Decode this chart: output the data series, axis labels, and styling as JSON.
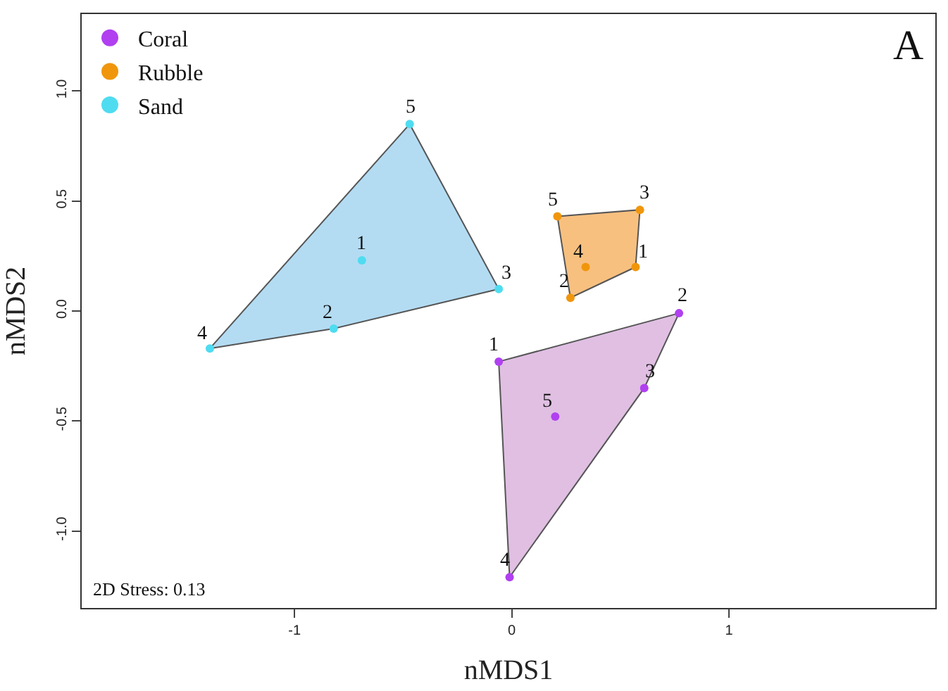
{
  "chart_data": {
    "type": "scatter",
    "xlabel": "nMDS1",
    "ylabel": "nMDS2",
    "xlim": [
      -1.98,
      1.95
    ],
    "ylim": [
      -1.35,
      1.35
    ],
    "xticks": [
      -1,
      0,
      1
    ],
    "yticks": [
      {
        "value": -1,
        "label": "-1.0"
      },
      {
        "value": -0.5,
        "label": "-0.5"
      },
      {
        "value": 0,
        "label": "0.0"
      },
      {
        "value": 0.5,
        "label": "0.5"
      },
      {
        "value": 1,
        "label": "1.0"
      }
    ],
    "legend": "top left",
    "marker": "circle",
    "annotations": [
      "A",
      "2D Stress: 0.13",
      {
        "text": "1",
        "x": -0.06,
        "y": -0.23
      },
      {
        "text": "2",
        "x": 0.77,
        "y": -0.01
      },
      {
        "text": "3",
        "x": 0.61,
        "y": -0.35
      },
      {
        "text": "4",
        "x": -0.01,
        "y": -1.21
      },
      {
        "text": "5",
        "x": 0.2,
        "y": -0.48
      },
      {
        "text": "1",
        "x": 0.57,
        "y": 0.2
      },
      {
        "text": "2",
        "x": 0.27,
        "y": 0.06
      },
      {
        "text": "3",
        "x": 0.59,
        "y": 0.46
      },
      {
        "text": "4",
        "x": 0.34,
        "y": 0.2
      },
      {
        "text": "5",
        "x": 0.21,
        "y": 0.43
      },
      {
        "text": "1",
        "x": -0.69,
        "y": 0.23
      },
      {
        "text": "2",
        "x": -0.82,
        "y": -0.08
      },
      {
        "text": "3",
        "x": -0.06,
        "y": 0.1
      },
      {
        "text": "4",
        "x": -1.39,
        "y": -0.17
      },
      {
        "text": "5",
        "x": -0.47,
        "y": 0.85
      }
    ],
    "series": [
      {
        "type": "area",
        "marker": "none",
        "color": "#e0bfe3",
        "x": [
          -0.06,
          0.77,
          0.61,
          -0.01,
          -0.06
        ],
        "values": [
          -0.23,
          -0.01,
          -0.35,
          -1.21,
          -0.23
        ]
      },
      {
        "type": "area",
        "marker": "none",
        "color": "#f8c07f",
        "x": [
          0.21,
          0.59,
          0.57,
          0.27,
          0.21
        ],
        "values": [
          0.43,
          0.46,
          0.2,
          0.06,
          0.43
        ]
      },
      {
        "type": "area",
        "marker": "none",
        "color": "#b3dcf3",
        "x": [
          -0.47,
          -0.06,
          -0.82,
          -1.39,
          -0.47
        ],
        "values": [
          0.85,
          0.1,
          -0.08,
          -0.17,
          0.85
        ]
      },
      {
        "name": "Coral",
        "color": "#b040f0",
        "x": [
          -0.06,
          0.77,
          0.61,
          -0.01,
          0.2
        ],
        "values": [
          -0.23,
          -0.01,
          -0.35,
          -1.21,
          -0.48
        ]
      },
      {
        "name": "Rubble",
        "color": "#f0960c",
        "x": [
          0.57,
          0.27,
          0.59,
          0.34,
          0.21
        ],
        "values": [
          0.2,
          0.06,
          0.46,
          0.2,
          0.43
        ]
      },
      {
        "name": "Sand",
        "color": "#4fdcf0",
        "x": [
          -0.69,
          -0.82,
          -0.06,
          -1.39,
          -0.47
        ],
        "values": [
          0.23,
          -0.08,
          0.1,
          -0.17,
          0.85
        ]
      }
    ]
  }
}
